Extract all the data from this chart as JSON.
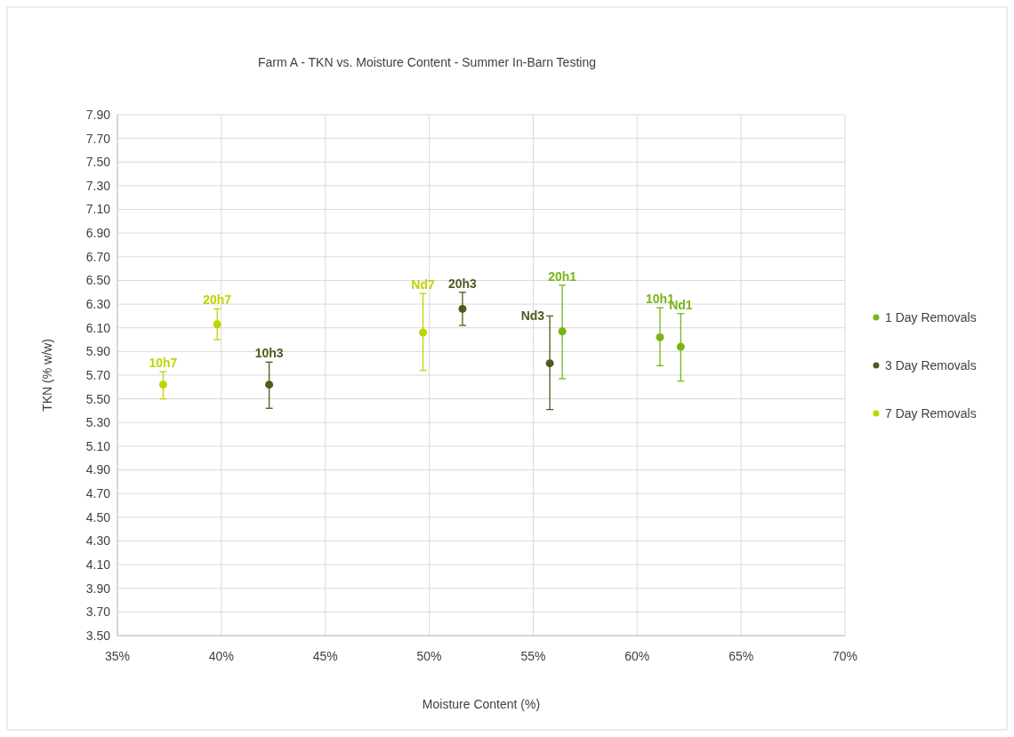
{
  "chart_data": {
    "type": "scatter",
    "title": "Farm A - TKN vs. Moisture Content - Summer In-Barn Testing",
    "xlabel": "Moisture Content (%)",
    "ylabel": "TKN (% w/w)",
    "xlim": [
      35,
      70
    ],
    "xticks": [
      {
        "value": 35,
        "label": "35%"
      },
      {
        "value": 40,
        "label": "40%"
      },
      {
        "value": 45,
        "label": "45%"
      },
      {
        "value": 50,
        "label": "50%"
      },
      {
        "value": 55,
        "label": "55%"
      },
      {
        "value": 60,
        "label": "60%"
      },
      {
        "value": 65,
        "label": "65%"
      },
      {
        "value": 70,
        "label": "70%"
      }
    ],
    "ylim": [
      3.5,
      7.9
    ],
    "yticks": [
      {
        "value": 3.5,
        "label": "3.50"
      },
      {
        "value": 3.7,
        "label": "3.70"
      },
      {
        "value": 3.9,
        "label": "3.90"
      },
      {
        "value": 4.1,
        "label": "4.10"
      },
      {
        "value": 4.3,
        "label": "4.30"
      },
      {
        "value": 4.5,
        "label": "4.50"
      },
      {
        "value": 4.7,
        "label": "4.70"
      },
      {
        "value": 4.9,
        "label": "4.90"
      },
      {
        "value": 5.1,
        "label": "5.10"
      },
      {
        "value": 5.3,
        "label": "5.30"
      },
      {
        "value": 5.5,
        "label": "5.50"
      },
      {
        "value": 5.7,
        "label": "5.70"
      },
      {
        "value": 5.9,
        "label": "5.90"
      },
      {
        "value": 6.1,
        "label": "6.10"
      },
      {
        "value": 6.3,
        "label": "6.30"
      },
      {
        "value": 6.5,
        "label": "6.50"
      },
      {
        "value": 6.7,
        "label": "6.70"
      },
      {
        "value": 6.9,
        "label": "6.90"
      },
      {
        "value": 7.1,
        "label": "7.10"
      },
      {
        "value": 7.3,
        "label": "7.30"
      },
      {
        "value": 7.5,
        "label": "7.50"
      },
      {
        "value": 7.7,
        "label": "7.70"
      },
      {
        "value": 7.9,
        "label": "7.90"
      }
    ],
    "grid": true,
    "legend": "right",
    "marker": "circle",
    "series": [
      {
        "name": "1 Day Removals",
        "color": "#78b418",
        "x": [
          56.4,
          61.1,
          62.1
        ],
        "values": [
          6.07,
          6.02,
          5.94
        ],
        "errors": [
          [
            5.67,
            6.46
          ],
          [
            5.78,
            6.27
          ],
          [
            5.65,
            6.22
          ]
        ]
      },
      {
        "name": "3 Day Removals",
        "color": "#4f5a1e",
        "x": [
          42.3,
          51.6,
          55.8
        ],
        "values": [
          5.62,
          6.26,
          5.8
        ],
        "errors": [
          [
            5.42,
            5.81
          ],
          [
            6.12,
            6.4
          ],
          [
            5.41,
            6.2
          ]
        ]
      },
      {
        "name": "7 Day Removals",
        "color": "#bfd400",
        "x": [
          37.2,
          39.8,
          49.7
        ],
        "values": [
          5.62,
          6.13,
          6.06
        ],
        "errors": [
          [
            5.5,
            5.73
          ],
          [
            6.0,
            6.26
          ],
          [
            5.74,
            6.39
          ]
        ]
      }
    ],
    "annotations": [
      {
        "text": "20h1",
        "x": 56.4,
        "y": 6.46
      },
      {
        "text": "10h1",
        "x": 61.1,
        "y": 6.27
      },
      {
        "text": "Nd1",
        "x": 62.1,
        "y": 6.22
      },
      {
        "text": "10h3",
        "x": 42.3,
        "y": 5.81
      },
      {
        "text": "20h3",
        "x": 51.6,
        "y": 6.4
      },
      {
        "text": "Nd3",
        "x": 55.8,
        "y": 6.2
      },
      {
        "text": "10h7",
        "x": 37.2,
        "y": 5.73
      },
      {
        "text": "20h7",
        "x": 39.8,
        "y": 6.26
      },
      {
        "text": "Nd7",
        "x": 49.7,
        "y": 6.39
      }
    ]
  }
}
